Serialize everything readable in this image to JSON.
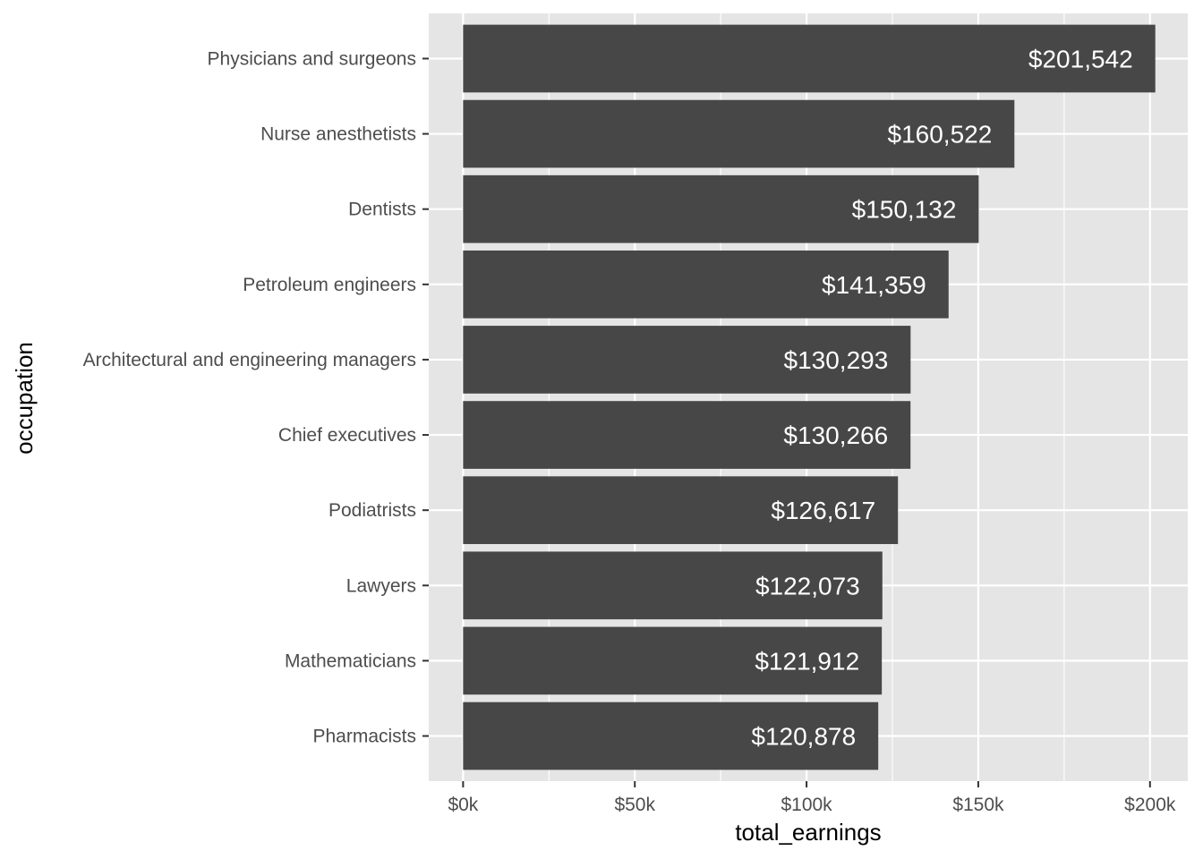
{
  "chart_data": {
    "type": "bar",
    "orientation": "horizontal",
    "xlabel": "total_earnings",
    "ylabel": "occupation",
    "xlim": [
      -10000,
      211000
    ],
    "x_ticks": [
      0,
      50000,
      100000,
      150000,
      200000
    ],
    "x_tick_labels": [
      "$0k",
      "$50k",
      "$100k",
      "$150k",
      "$200k"
    ],
    "x_minor_ticks": [
      25000,
      75000,
      125000,
      175000
    ],
    "grid": true,
    "legend": "none",
    "categories": [
      "Physicians and surgeons",
      "Nurse anesthetists",
      "Dentists",
      "Petroleum engineers",
      "Architectural and engineering managers",
      "Chief executives",
      "Podiatrists",
      "Lawyers",
      "Mathematicians",
      "Pharmacists"
    ],
    "values": [
      201542,
      160522,
      150132,
      141359,
      130293,
      130266,
      126617,
      122073,
      121912,
      120878
    ],
    "value_labels": [
      "$201,542",
      "$160,522",
      "$150,132",
      "$141,359",
      "$130,293",
      "$130,266",
      "$126,617",
      "$122,073",
      "$121,912",
      "$120,878"
    ],
    "colors": {
      "bar": "#474747",
      "panel_background": "#e5e5e5",
      "grid": "#ffffff",
      "bar_label": "#ffffff"
    }
  }
}
